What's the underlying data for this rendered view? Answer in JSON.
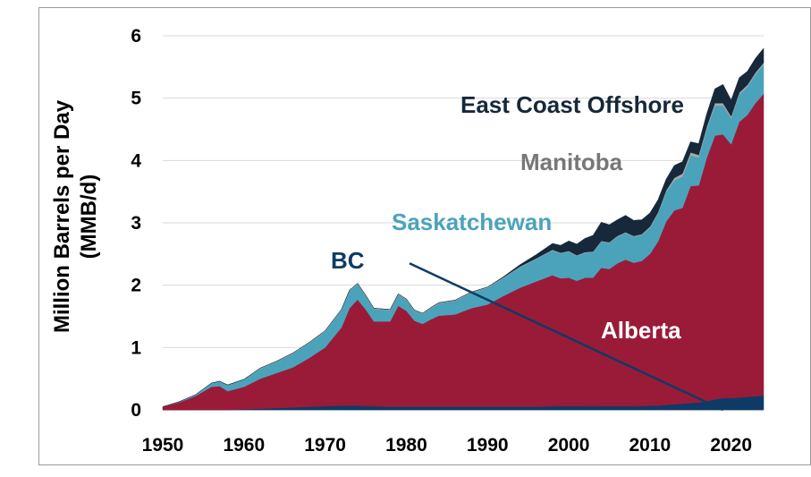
{
  "chart_data": {
    "type": "area",
    "ylabel_line1": "Million Barrels per Day",
    "ylabel_line2": "(MMB/d)",
    "xlim": [
      1950,
      2024
    ],
    "ylim": [
      0,
      6
    ],
    "x_ticks": [
      "1950",
      "1960",
      "1970",
      "1980",
      "1990",
      "2000",
      "2010",
      "2020"
    ],
    "y_ticks": [
      "0",
      "1",
      "2",
      "3",
      "4",
      "5",
      "6"
    ],
    "grid": true,
    "stacked": true,
    "x": [
      1950,
      1952,
      1954,
      1956,
      1957,
      1958,
      1960,
      1962,
      1964,
      1966,
      1968,
      1970,
      1972,
      1973,
      1974,
      1975,
      1976,
      1978,
      1979,
      1980,
      1981,
      1982,
      1983,
      1984,
      1986,
      1988,
      1990,
      1992,
      1994,
      1996,
      1998,
      1999,
      2000,
      2001,
      2002,
      2003,
      2004,
      2005,
      2006,
      2007,
      2008,
      2009,
      2010,
      2011,
      2012,
      2013,
      2014,
      2015,
      2016,
      2017,
      2018,
      2019,
      2020,
      2021,
      2022,
      2023,
      2024
    ],
    "series": [
      {
        "name": "BC",
        "color": "#0d3b66",
        "values": [
          0,
          0,
          0,
          0,
          0,
          0,
          0.01,
          0.02,
          0.03,
          0.04,
          0.05,
          0.06,
          0.07,
          0.07,
          0.07,
          0.06,
          0.06,
          0.05,
          0.05,
          0.05,
          0.05,
          0.05,
          0.05,
          0.05,
          0.05,
          0.05,
          0.05,
          0.05,
          0.05,
          0.05,
          0.06,
          0.06,
          0.06,
          0.06,
          0.06,
          0.06,
          0.06,
          0.06,
          0.06,
          0.06,
          0.06,
          0.06,
          0.07,
          0.07,
          0.08,
          0.09,
          0.1,
          0.11,
          0.12,
          0.14,
          0.17,
          0.19,
          0.19,
          0.2,
          0.21,
          0.22,
          0.23
        ]
      },
      {
        "name": "Alberta",
        "color": "#9a1b38",
        "values": [
          0.05,
          0.12,
          0.22,
          0.37,
          0.38,
          0.3,
          0.36,
          0.48,
          0.56,
          0.64,
          0.78,
          0.94,
          1.25,
          1.56,
          1.7,
          1.55,
          1.36,
          1.37,
          1.62,
          1.54,
          1.38,
          1.33,
          1.4,
          1.46,
          1.48,
          1.58,
          1.64,
          1.78,
          1.91,
          2.01,
          2.1,
          2.05,
          2.06,
          2.01,
          2.06,
          2.06,
          2.22,
          2.2,
          2.29,
          2.35,
          2.3,
          2.33,
          2.43,
          2.63,
          2.94,
          3.11,
          3.14,
          3.48,
          3.48,
          3.9,
          4.23,
          4.23,
          4.07,
          4.42,
          4.52,
          4.7,
          4.84
        ]
      },
      {
        "name": "Saskatchewan",
        "color": "#4aa3bb",
        "values": [
          0,
          0.01,
          0.02,
          0.06,
          0.08,
          0.1,
          0.12,
          0.16,
          0.18,
          0.22,
          0.24,
          0.26,
          0.28,
          0.28,
          0.25,
          0.22,
          0.2,
          0.18,
          0.18,
          0.18,
          0.16,
          0.16,
          0.18,
          0.2,
          0.22,
          0.25,
          0.27,
          0.29,
          0.33,
          0.36,
          0.4,
          0.4,
          0.42,
          0.4,
          0.4,
          0.41,
          0.42,
          0.42,
          0.43,
          0.43,
          0.42,
          0.42,
          0.42,
          0.45,
          0.47,
          0.48,
          0.5,
          0.49,
          0.45,
          0.46,
          0.48,
          0.46,
          0.42,
          0.44,
          0.45,
          0.46,
          0.47
        ]
      },
      {
        "name": "Manitoba",
        "color": "#a8a8a8",
        "values": [
          0,
          0,
          0,
          0,
          0,
          0,
          0,
          0.01,
          0.01,
          0.01,
          0.01,
          0.01,
          0.01,
          0.01,
          0.01,
          0.01,
          0.01,
          0.01,
          0.01,
          0.01,
          0.01,
          0.01,
          0.01,
          0.01,
          0.01,
          0.01,
          0.01,
          0.01,
          0.01,
          0.01,
          0.01,
          0.01,
          0.01,
          0.01,
          0.01,
          0.01,
          0.01,
          0.01,
          0.01,
          0.01,
          0.01,
          0.01,
          0.02,
          0.02,
          0.03,
          0.04,
          0.05,
          0.05,
          0.04,
          0.04,
          0.04,
          0.04,
          0.03,
          0.03,
          0.03,
          0.03,
          0.03
        ]
      },
      {
        "name": "East Coast Offshore",
        "color": "#16283a",
        "values": [
          0,
          0,
          0,
          0,
          0,
          0,
          0,
          0,
          0,
          0,
          0,
          0,
          0,
          0,
          0,
          0,
          0,
          0,
          0,
          0,
          0,
          0,
          0,
          0,
          0,
          0,
          0,
          0.01,
          0.03,
          0.06,
          0.1,
          0.12,
          0.16,
          0.18,
          0.22,
          0.26,
          0.3,
          0.28,
          0.26,
          0.27,
          0.25,
          0.23,
          0.22,
          0.2,
          0.18,
          0.2,
          0.19,
          0.17,
          0.18,
          0.21,
          0.23,
          0.3,
          0.26,
          0.24,
          0.22,
          0.23,
          0.23
        ]
      }
    ],
    "labels": {
      "east_coast": "East Coast Offshore",
      "manitoba": "Manitoba",
      "saskatchewan": "Saskatchewan",
      "bc": "BC",
      "alberta": "Alberta"
    },
    "label_colors": {
      "east_coast": "#16283a",
      "manitoba": "#777777",
      "saskatchewan": "#4aa3bb",
      "bc": "#0d3b66",
      "alberta": "#ffffff"
    },
    "bc_pointer": {
      "from": [
        1987,
        2.35
      ],
      "to": [
        2019,
        0
      ]
    }
  }
}
